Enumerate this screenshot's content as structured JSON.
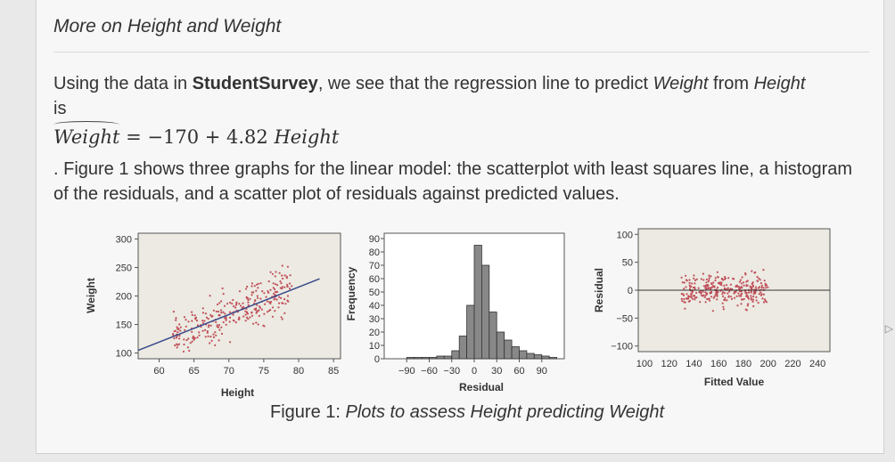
{
  "section_title": "More on Height and Weight",
  "intro": {
    "text1": "Using the data in ",
    "dataset": "StudentSurvey",
    "text2": ", we see that the regression line to predict ",
    "response": "Weight",
    "text3": " from ",
    "predictor": "Height",
    "text4": " is"
  },
  "formula": {
    "lhs": "Weight",
    "eq": " = −170 + 4.82 ",
    "rhs_var": "Height"
  },
  "description": ". Figure 1 shows three graphs for the linear model: the scatterplot with least squares line, a histogram of the residuals, and a scatter plot of residuals against predicted values.",
  "caption": {
    "prefix": "Figure 1: ",
    "text": "Plots to assess Height predicting Weight"
  },
  "colors": {
    "points": "#c0505a",
    "line": "#3a4a8a",
    "bars": "#888888",
    "panel": "#eceae2"
  },
  "chart_data": [
    {
      "type": "scatter",
      "xlabel": "Height",
      "ylabel": "Weight",
      "xlim": [
        57,
        86
      ],
      "ylim": [
        90,
        310
      ],
      "xticks": [
        "60",
        "65",
        "70",
        "75",
        "80",
        "85"
      ],
      "yticks": [
        "300",
        "250",
        "200",
        "150",
        "100"
      ],
      "fit_line": {
        "x": [
          57,
          83
        ],
        "y": [
          104.7,
          230.1
        ]
      }
    },
    {
      "type": "bar",
      "xlabel": "Residual",
      "ylabel": "Frequency",
      "xticks": [
        "−90",
        "−60",
        "−30",
        "0",
        "30",
        "60",
        "90"
      ],
      "yticks": [
        "90",
        "80",
        "70",
        "60",
        "50",
        "40",
        "30",
        "20",
        "10",
        "0"
      ],
      "ylim": [
        0,
        90
      ],
      "bin_width": 10,
      "bin_starts": [
        -120,
        -110,
        -100,
        -90,
        -80,
        -70,
        -60,
        -50,
        -40,
        -30,
        -20,
        -10,
        0,
        10,
        20,
        30,
        40,
        50,
        60,
        70,
        80,
        90,
        100,
        110
      ],
      "values": [
        0,
        0,
        0,
        1,
        1,
        1,
        1,
        2,
        2,
        6,
        17,
        40,
        85,
        70,
        35,
        20,
        14,
        9,
        6,
        4,
        3,
        2,
        1,
        0
      ]
    },
    {
      "type": "scatter",
      "xlabel": "Fitted Value",
      "ylabel": "Residual",
      "xticks": [
        "100",
        "120",
        "140",
        "160",
        "180",
        "200",
        "220",
        "240"
      ],
      "yticks": [
        "100",
        "50",
        "0",
        "−50",
        "−100"
      ],
      "xlim": [
        100,
        245
      ],
      "ylim": [
        -110,
        110
      ],
      "zero_line": 0
    }
  ]
}
